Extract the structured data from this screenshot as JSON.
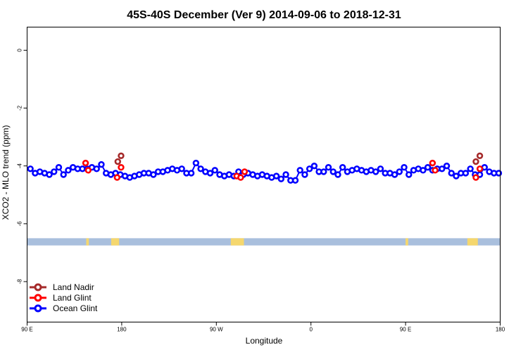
{
  "chart_data": {
    "type": "line",
    "title": "45S-40S December (Ver 9)   2014-09-06 to 2018-12-31",
    "xlabel": "Longitude",
    "ylabel": "XCO2 - MLO trend (ppm)",
    "xlim": [
      90,
      450
    ],
    "ylim": [
      -9.4,
      0.8
    ],
    "x_ticks": [
      {
        "value": 90,
        "label": "90 E"
      },
      {
        "value": 162,
        "label": "180"
      },
      {
        "value": 234,
        "label": "90 W"
      },
      {
        "value": 306,
        "label": "0"
      },
      {
        "value": 378,
        "label": "90 E"
      },
      {
        "value": 450,
        "label": "180"
      }
    ],
    "y_ticks": [
      0,
      -2,
      -4,
      -6,
      -8
    ],
    "land_band": {
      "y_range": [
        -6.75,
        -6.5
      ],
      "ocean_color": "#a9bfdd",
      "land_color": "#f5d76e",
      "land_segments": [
        [
          135,
          137
        ],
        [
          154,
          160
        ],
        [
          245,
          255
        ],
        [
          378,
          380
        ],
        [
          425,
          433
        ]
      ]
    },
    "legend": {
      "position": "bottom-left",
      "entries": [
        {
          "name": "Land Nadir",
          "color": "#a52a2a"
        },
        {
          "name": "Land Glint",
          "color": "#ff0000"
        },
        {
          "name": "Ocean Glint",
          "color": "#0000ff"
        }
      ]
    },
    "series": [
      {
        "name": "Ocean Glint",
        "color": "#0000ff",
        "x": [
          92.5,
          96.1,
          99.7,
          103.3,
          106.9,
          110.5,
          114.1,
          117.7,
          121.3,
          124.9,
          128.5,
          132.1,
          135.7,
          139.3,
          142.9,
          146.5,
          150.1,
          153.7,
          157.3,
          160.9,
          164.5,
          168.1,
          171.7,
          175.3,
          178.9,
          182.5,
          186.1,
          189.7,
          193.3,
          196.9,
          200.5,
          204.1,
          207.7,
          211.3,
          214.9,
          218.5,
          222.1,
          225.7,
          229.3,
          232.9,
          236.5,
          240.1,
          243.7,
          247.3,
          250.9,
          254.5,
          258.1,
          261.7,
          265.3,
          268.9,
          272.5,
          276.1,
          279.7,
          283.3,
          286.9,
          290.5,
          294.1,
          297.7,
          301.3,
          304.9,
          308.5,
          312.1,
          315.7,
          319.3,
          322.9,
          326.5,
          330.1,
          333.7,
          337.3,
          340.9,
          344.5,
          348.1,
          351.7,
          355.3,
          358.9,
          362.5,
          366.1,
          369.7,
          373.3,
          376.9,
          380.5,
          384.1,
          387.7,
          391.3,
          394.9,
          398.5,
          402.1,
          405.7,
          409.3,
          412.9,
          416.5,
          420.1,
          423.7,
          427.3,
          430.9,
          434.5,
          438.1,
          441.7,
          445.3,
          448.9
        ],
        "values": [
          -4.1,
          -4.25,
          -4.2,
          -4.25,
          -4.3,
          -4.2,
          -4.05,
          -4.3,
          -4.15,
          -4.05,
          -4.1,
          -4.1,
          -4.1,
          -4.05,
          -4.1,
          -3.95,
          -4.25,
          -4.3,
          -4.25,
          -4.3,
          -4.35,
          -4.4,
          -4.35,
          -4.3,
          -4.25,
          -4.25,
          -4.3,
          -4.2,
          -4.2,
          -4.15,
          -4.1,
          -4.15,
          -4.1,
          -4.25,
          -4.25,
          -3.9,
          -4.1,
          -4.2,
          -4.25,
          -4.15,
          -4.3,
          -4.35,
          -4.3,
          -4.35,
          -4.2,
          -4.3,
          -4.25,
          -4.3,
          -4.35,
          -4.3,
          -4.35,
          -4.4,
          -4.35,
          -4.45,
          -4.3,
          -4.5,
          -4.5,
          -4.15,
          -4.3,
          -4.1,
          -4.0,
          -4.2,
          -4.2,
          -4.05,
          -4.2,
          -4.3,
          -4.05,
          -4.2,
          -4.15,
          -4.1,
          -4.15,
          -4.2,
          -4.15,
          -4.2,
          -4.1,
          -4.25,
          -4.25,
          -4.3,
          -4.2,
          -4.05,
          -4.3,
          -4.15,
          -4.1,
          -4.15,
          -4.05,
          -4.15,
          -4.1,
          -4.1,
          -4.0,
          -4.25,
          -4.35,
          -4.25,
          -4.25,
          -4.1,
          -4.3,
          -4.3,
          -4.05,
          -4.2,
          -4.25,
          -4.25
        ]
      },
      {
        "name": "Land Glint",
        "color": "#ff0000",
        "x": [
          134.5,
          136.5,
          158.5,
          161.5,
          249.5,
          252.5,
          255.5,
          398.5,
          400.5,
          431.5,
          434.5
        ],
        "values": [
          -3.9,
          -4.15,
          -4.4,
          -4.05,
          -4.35,
          -4.4,
          -4.2,
          -3.9,
          -4.15,
          -4.4,
          -4.1
        ]
      },
      {
        "name": "Land Nadir",
        "color": "#a52a2a",
        "x": [
          159.0,
          161.5,
          431.5,
          434.5
        ],
        "values": [
          -3.85,
          -3.65,
          -3.85,
          -3.65
        ]
      }
    ]
  }
}
